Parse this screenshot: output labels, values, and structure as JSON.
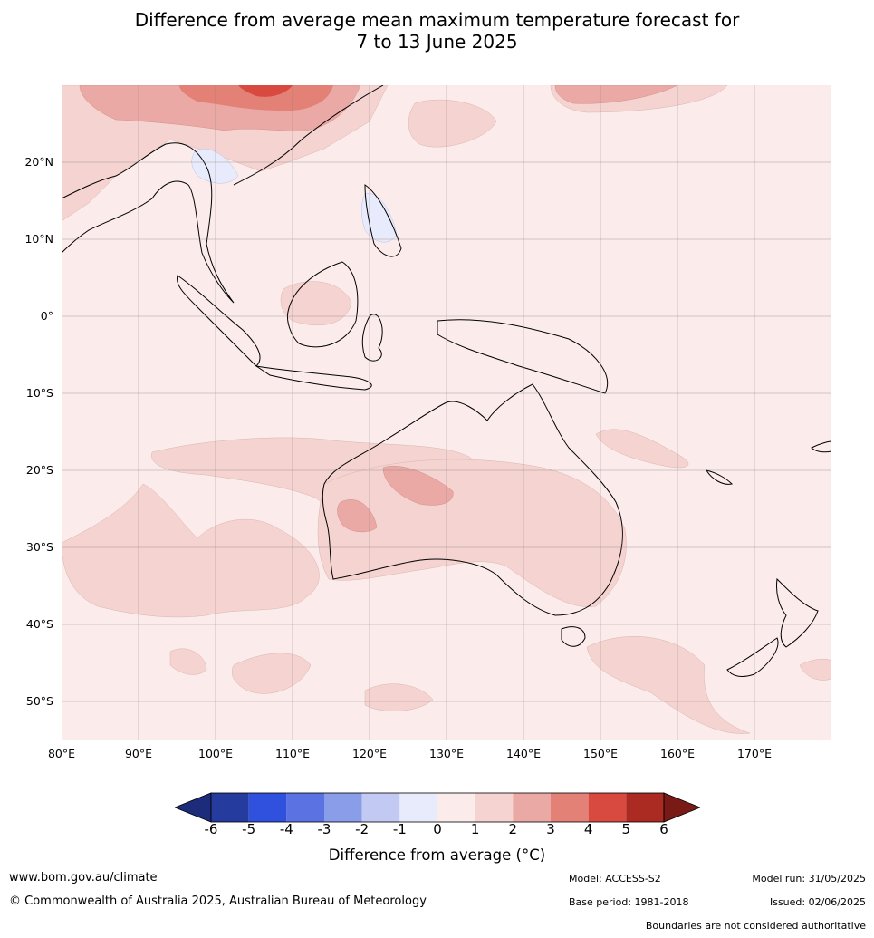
{
  "title": {
    "line1": "Difference from average mean maximum temperature forecast for",
    "line2": "7 to 13 June 2025"
  },
  "map": {
    "lat_labels": [
      "20°N",
      "10°N",
      "0°",
      "10°S",
      "20°S",
      "30°S",
      "40°S",
      "50°S"
    ],
    "lon_labels": [
      "80°E",
      "90°E",
      "100°E",
      "110°E",
      "120°E",
      "130°E",
      "140°E",
      "150°E",
      "160°E",
      "170°E"
    ],
    "extent": {
      "lon": [
        80,
        180
      ],
      "lat": [
        -55,
        30
      ]
    },
    "background_color": "#fbeceb"
  },
  "colorbar": {
    "ticks": [
      "-6",
      "-5",
      "-4",
      "-3",
      "-2",
      "-1",
      "0",
      "1",
      "2",
      "3",
      "4",
      "5",
      "6"
    ],
    "colors": [
      "#253b9e",
      "#3050de",
      "#5b73e2",
      "#8a9de9",
      "#c2c9f2",
      "#e8ebfb",
      "#fbeceb",
      "#f4d3d0",
      "#eaa9a4",
      "#e48177",
      "#d84a3f",
      "#ab2a22"
    ],
    "under_color": "#1d2b7b",
    "over_color": "#7a1a17",
    "label": "Difference from average (°C)"
  },
  "footer": {
    "url": "www.bom.gov.au/climate",
    "copyright": "© Commonwealth of Australia 2025, Australian Bureau of Meteorology",
    "model": "Model: ACCESS-S2",
    "base_period": "Base period: 1981-2018",
    "model_run": "Model run: 31/05/2025",
    "issued": "Issued: 02/06/2025",
    "boundaries_note": "Boundaries are not considered authoritative"
  }
}
